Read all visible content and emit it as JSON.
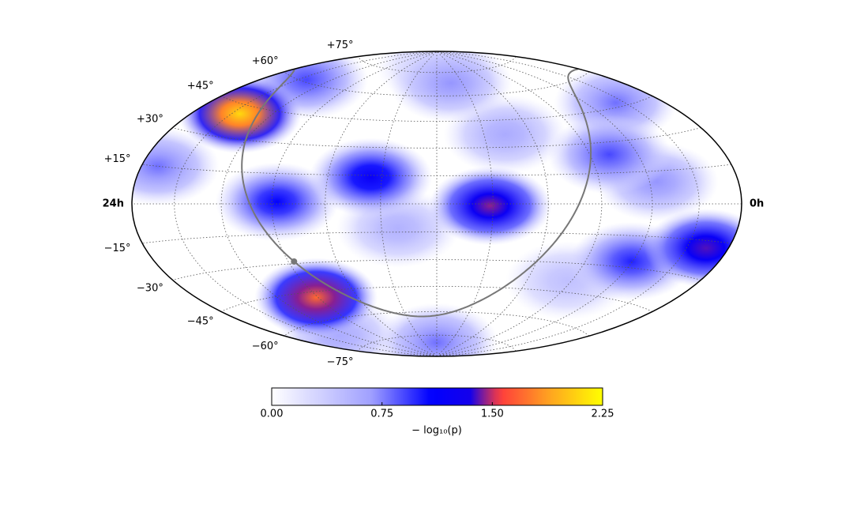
{
  "chart_data": {
    "type": "skymap",
    "projection": "hammer",
    "grid": true,
    "galactic_plane": true,
    "galactic_center": true,
    "lat_ticks": [
      {
        "value": 75,
        "label": "+75°"
      },
      {
        "value": 60,
        "label": "+60°"
      },
      {
        "value": 45,
        "label": "+45°"
      },
      {
        "value": 30,
        "label": "+30°"
      },
      {
        "value": 15,
        "label": "+15°"
      },
      {
        "value": -15,
        "label": "−15°"
      },
      {
        "value": -30,
        "label": "−30°"
      },
      {
        "value": -45,
        "label": "−45°"
      },
      {
        "value": -60,
        "label": "−60°"
      },
      {
        "value": -75,
        "label": "−75°"
      }
    ],
    "lon_ticks": [
      {
        "value": 24,
        "label": "24h"
      },
      {
        "value": 0,
        "label": "0h"
      }
    ],
    "hotspots": [
      {
        "ra": 12.0,
        "dec": 80,
        "value": 0.4
      },
      {
        "ra": 6.2,
        "dec": -39,
        "value": 0.45
      },
      {
        "ra": 13.4,
        "dec": -13,
        "value": 0.55
      },
      {
        "ra": 20.8,
        "dec": -68,
        "value": 0.6
      },
      {
        "ra": 9.1,
        "dec": 37,
        "value": 0.6
      },
      {
        "ra": 10.9,
        "dec": 68,
        "value": 0.7
      },
      {
        "ra": 3.7,
        "dec": 10,
        "value": 0.7
      },
      {
        "ra": 23.2,
        "dec": 15,
        "value": 0.8
      },
      {
        "ra": 2.45,
        "dec": 47,
        "value": 0.8
      },
      {
        "ra": 12.0,
        "dec": -80,
        "value": 0.8
      },
      {
        "ra": 21.5,
        "dec": 61,
        "value": 0.9
      },
      {
        "ra": 5.2,
        "dec": 24,
        "value": 0.9
      },
      {
        "ra": 4.05,
        "dec": -27,
        "value": 1.0
      },
      {
        "ra": 17.8,
        "dec": 1,
        "value": 1.1
      },
      {
        "ra": 14.4,
        "dec": 14,
        "value": 1.2
      },
      {
        "ra": 1.1,
        "dec": -18,
        "value": 1.4
      },
      {
        "ra": 10.1,
        "dec": -1,
        "value": 1.45
      },
      {
        "ra": 18.1,
        "dec": -48,
        "value": 1.7
      },
      {
        "ra": 21.6,
        "dec": 41,
        "value": 2.1
      }
    ],
    "colorbar": {
      "label": "− log₁₀(p)",
      "clim": [
        0,
        2.25
      ],
      "ticks": [
        {
          "value": 0,
          "label": "0.00"
        },
        {
          "value": 0.75,
          "label": "0.75"
        },
        {
          "value": 1.5,
          "label": "1.50"
        },
        {
          "value": 2.25,
          "label": "2.25"
        }
      ]
    }
  }
}
